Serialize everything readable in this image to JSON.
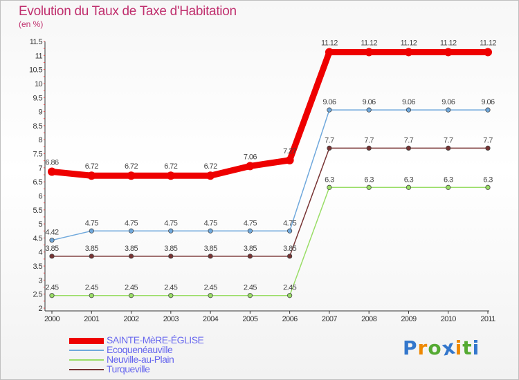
{
  "chart_data": {
    "type": "line",
    "title": "Evolution du Taux de Taxe d'Habitation",
    "subtitle": "(en %)",
    "x": [
      "2000",
      "2001",
      "2002",
      "2003",
      "2004",
      "2005",
      "2006",
      "2007",
      "2008",
      "2009",
      "2010",
      "2011"
    ],
    "ylim": [
      2,
      11.5
    ],
    "yticks": [
      "2",
      "2.5",
      "3",
      "3.5",
      "4",
      "4.5",
      "5",
      "5.5",
      "6",
      "6.5",
      "7",
      "7.5",
      "8",
      "8.5",
      "9",
      "9.5",
      "10",
      "10.5",
      "11",
      "11.5"
    ],
    "grid": false,
    "legend_position": "bottom-left",
    "series": [
      {
        "name": "SAINTE-MèRE-ÉGLISE",
        "color": "#ee0000",
        "values": [
          6.86,
          6.72,
          6.72,
          6.72,
          6.72,
          7.06,
          7.27,
          11.12,
          11.12,
          11.12,
          11.12,
          11.12
        ],
        "labels": [
          "6.86",
          "6.72",
          "6.72",
          "6.72",
          "6.72",
          "7.06",
          "7.27",
          "11.12",
          "11.12",
          "11.12",
          "11.12",
          "11.12"
        ]
      },
      {
        "name": "Ecoquenéauville",
        "color": "#6fa8dc",
        "values": [
          4.42,
          4.75,
          4.75,
          4.75,
          4.75,
          4.75,
          4.75,
          9.06,
          9.06,
          9.06,
          9.06,
          9.06
        ],
        "labels": [
          "4.42",
          "4.75",
          "4.75",
          "4.75",
          "4.75",
          "4.75",
          "4.75",
          "9.06",
          "9.06",
          "9.06",
          "9.06",
          "9.06"
        ]
      },
      {
        "name": "Neuville-au-Plain",
        "color": "#99dd66",
        "values": [
          2.45,
          2.45,
          2.45,
          2.45,
          2.45,
          2.45,
          2.45,
          6.3,
          6.3,
          6.3,
          6.3,
          6.3
        ],
        "labels": [
          "2.45",
          "2.45",
          "2.45",
          "2.45",
          "2.45",
          "2.45",
          "2.45",
          "6.3",
          "6.3",
          "6.3",
          "6.3",
          "6.3"
        ]
      },
      {
        "name": "Turqueville",
        "color": "#773333",
        "values": [
          3.85,
          3.85,
          3.85,
          3.85,
          3.85,
          3.85,
          3.85,
          7.7,
          7.7,
          7.7,
          7.7,
          7.7
        ],
        "labels": [
          "3.85",
          "3.85",
          "3.85",
          "3.85",
          "3.85",
          "3.85",
          "3.85",
          "7.7",
          "7.7",
          "7.7",
          "7.7",
          "7.7"
        ]
      }
    ]
  },
  "logo": {
    "letters": [
      "P",
      "r",
      "o",
      "x",
      "i",
      "t",
      "i"
    ],
    "colors": [
      "#3377cc",
      "#ee8800",
      "#55aa33",
      "#3377cc",
      "#ee8800",
      "#55aa33",
      "#3377cc"
    ]
  }
}
